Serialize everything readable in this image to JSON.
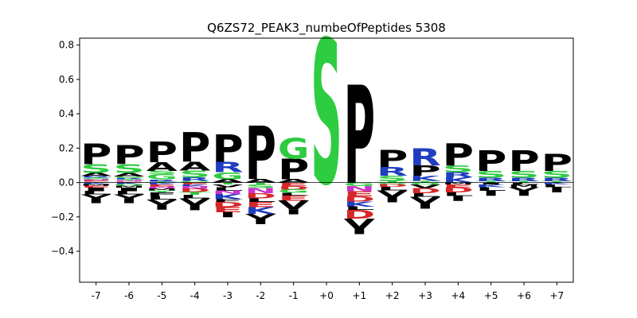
{
  "chart_data": {
    "type": "sequence-logo",
    "title": "Q6ZS72_PEAK3_numbeOfPeptides 5308",
    "xlabel": "",
    "ylabel": "",
    "ylim": [
      -0.58,
      0.84
    ],
    "y_ticks": [
      -0.4,
      -0.2,
      0.0,
      0.2,
      0.4,
      0.6,
      0.8
    ],
    "y_tick_labels": [
      "−0.4",
      "−0.2",
      "0.0",
      "0.2",
      "0.4",
      "0.6",
      "0.8"
    ],
    "positions": [
      "-7",
      "-6",
      "-5",
      "-4",
      "-3",
      "-2",
      "-1",
      "+0",
      "+1",
      "+2",
      "+3",
      "+4",
      "+5",
      "+6",
      "+7"
    ],
    "colors": {
      "P": "#000000",
      "A": "#000000",
      "V": "#000000",
      "L": "#000000",
      "I": "#000000",
      "F": "#000000",
      "W": "#000000",
      "M": "#000000",
      "S": "#2ecc40",
      "G": "#2ecc40",
      "T": "#2ecc40",
      "C": "#2ecc40",
      "Y": "#2ecc40",
      "Q": "#2ecc40",
      "N": "#cc33cc",
      "R": "#1f3ebf",
      "K": "#1f3ebf",
      "H": "#1f3ebf",
      "D": "#d62728",
      "E": "#d62728",
      "gap": "#000000"
    },
    "columns": [
      {
        "pos": "-7",
        "pos_stack": [
          [
            "Q",
            0.004
          ],
          [
            "D",
            0.004
          ],
          [
            "E",
            0.005
          ],
          [
            "N",
            0.005
          ],
          [
            "G",
            0.005
          ],
          [
            "T",
            0.006
          ],
          [
            "R",
            0.008
          ],
          [
            "A",
            0.02
          ],
          [
            "S",
            0.05
          ],
          [
            "P",
            0.12
          ]
        ],
        "neg_stack": [
          [
            "K",
            0.008
          ],
          [
            "M",
            0.01
          ],
          [
            "E",
            0.012
          ],
          [
            "I",
            0.02
          ],
          [
            "L",
            0.02
          ],
          [
            "V",
            0.02
          ],
          [
            "gap",
            0.03
          ]
        ]
      },
      {
        "pos": "-6",
        "pos_stack": [
          [
            "E",
            0.004
          ],
          [
            "D",
            0.004
          ],
          [
            "N",
            0.005
          ],
          [
            "T",
            0.005
          ],
          [
            "R",
            0.008
          ],
          [
            "G",
            0.01
          ],
          [
            "A",
            0.02
          ],
          [
            "S",
            0.05
          ],
          [
            "P",
            0.11
          ]
        ],
        "neg_stack": [
          [
            "K",
            0.008
          ],
          [
            "Q",
            0.01
          ],
          [
            "M",
            0.012
          ],
          [
            "I",
            0.02
          ],
          [
            "L",
            0.02
          ],
          [
            "V",
            0.02
          ],
          [
            "gap",
            0.03
          ]
        ]
      },
      {
        "pos": "-5",
        "pos_stack": [
          [
            "T",
            0.006
          ],
          [
            "R",
            0.012
          ],
          [
            "G",
            0.03
          ],
          [
            "S",
            0.02
          ],
          [
            "A",
            0.05
          ],
          [
            "P",
            0.12
          ]
        ],
        "neg_stack": [
          [
            "K",
            0.01
          ],
          [
            "E",
            0.012
          ],
          [
            "N",
            0.012
          ],
          [
            "M",
            0.012
          ],
          [
            "Y",
            0.012
          ],
          [
            "F",
            0.02
          ],
          [
            "L",
            0.02
          ],
          [
            "V",
            0.03
          ],
          [
            "gap",
            0.03
          ]
        ]
      },
      {
        "pos": "-4",
        "pos_stack": [
          [
            "G",
            0.01
          ],
          [
            "R",
            0.02
          ],
          [
            "S",
            0.04
          ],
          [
            "A",
            0.05
          ],
          [
            "P",
            0.17
          ]
        ],
        "neg_stack": [
          [
            "E",
            0.01
          ],
          [
            "K",
            0.012
          ],
          [
            "N",
            0.014
          ],
          [
            "D",
            0.02
          ],
          [
            "T",
            0.015
          ],
          [
            "L",
            0.02
          ],
          [
            "V",
            0.04
          ],
          [
            "gap",
            0.03
          ]
        ]
      },
      {
        "pos": "-3",
        "pos_stack": [
          [
            "A",
            0.02
          ],
          [
            "G",
            0.04
          ],
          [
            "R",
            0.06
          ],
          [
            "P",
            0.16
          ]
        ],
        "neg_stack": [
          [
            "T",
            0.012
          ],
          [
            "V",
            0.015
          ],
          [
            "L",
            0.02
          ],
          [
            "N",
            0.02
          ],
          [
            "K",
            0.03
          ],
          [
            "F",
            0.015
          ],
          [
            "D",
            0.03
          ],
          [
            "E",
            0.03
          ],
          [
            "gap",
            0.03
          ]
        ]
      },
      {
        "pos": "-2",
        "pos_stack": [
          [
            "A",
            0.02
          ],
          [
            "P",
            0.31
          ]
        ],
        "neg_stack": [
          [
            "T",
            0.012
          ],
          [
            "S",
            0.02
          ],
          [
            "N",
            0.03
          ],
          [
            "D",
            0.03
          ],
          [
            "L",
            0.02
          ],
          [
            "E",
            0.03
          ],
          [
            "K",
            0.04
          ],
          [
            "V",
            0.03
          ],
          [
            "gap",
            0.03
          ]
        ]
      },
      {
        "pos": "-1",
        "pos_stack": [
          [
            "A",
            0.02
          ],
          [
            "P",
            0.12
          ],
          [
            "G",
            0.12
          ]
        ],
        "neg_stack": [
          [
            "E",
            0.02
          ],
          [
            "D",
            0.02
          ],
          [
            "G",
            0.02
          ],
          [
            "L",
            0.015
          ],
          [
            "E",
            0.03
          ],
          [
            "V",
            0.05
          ],
          [
            "gap",
            0.03
          ]
        ]
      },
      {
        "pos": "+0",
        "pos_stack": [
          [
            "S",
            0.84
          ]
        ],
        "neg_stack": []
      },
      {
        "pos": "+1",
        "pos_stack": [
          [
            "P",
            0.57
          ]
        ],
        "neg_stack": [
          [
            "G",
            0.02
          ],
          [
            "N",
            0.03
          ],
          [
            "E",
            0.03
          ],
          [
            "D",
            0.03
          ],
          [
            "K",
            0.03
          ],
          [
            "L",
            0.02
          ],
          [
            "D",
            0.05
          ],
          [
            "V",
            0.06
          ],
          [
            "gap",
            0.03
          ]
        ]
      },
      {
        "pos": "+2",
        "pos_stack": [
          [
            "T",
            0.01
          ],
          [
            "S",
            0.03
          ],
          [
            "R",
            0.05
          ],
          [
            "P",
            0.1
          ]
        ],
        "neg_stack": [
          [
            "Q",
            0.01
          ],
          [
            "D",
            0.015
          ],
          [
            "L",
            0.02
          ],
          [
            "V",
            0.04
          ],
          [
            "gap",
            0.03
          ]
        ]
      },
      {
        "pos": "+3",
        "pos_stack": [
          [
            "T",
            0.01
          ],
          [
            "K",
            0.03
          ],
          [
            "P",
            0.06
          ],
          [
            "R",
            0.1
          ]
        ],
        "neg_stack": [
          [
            "Q",
            0.012
          ],
          [
            "V",
            0.02
          ],
          [
            "D",
            0.03
          ],
          [
            "L",
            0.02
          ],
          [
            "V",
            0.04
          ],
          [
            "gap",
            0.03
          ]
        ]
      },
      {
        "pos": "+4",
        "pos_stack": [
          [
            "K",
            0.03
          ],
          [
            "R",
            0.03
          ],
          [
            "S",
            0.04
          ],
          [
            "P",
            0.13
          ]
        ],
        "neg_stack": [
          [
            "M",
            0.012
          ],
          [
            "E",
            0.015
          ],
          [
            "D",
            0.03
          ],
          [
            "L",
            0.02
          ],
          [
            "gap",
            0.03
          ]
        ]
      },
      {
        "pos": "+5",
        "pos_stack": [
          [
            "T",
            0.008
          ],
          [
            "R",
            0.02
          ],
          [
            "S",
            0.04
          ],
          [
            "P",
            0.12
          ]
        ],
        "neg_stack": [
          [
            "I",
            0.012
          ],
          [
            "K",
            0.015
          ],
          [
            "L",
            0.02
          ],
          [
            "gap",
            0.03
          ]
        ]
      },
      {
        "pos": "+6",
        "pos_stack": [
          [
            "T",
            0.008
          ],
          [
            "R",
            0.02
          ],
          [
            "S",
            0.04
          ],
          [
            "P",
            0.12
          ]
        ],
        "neg_stack": [
          [
            "L",
            0.012
          ],
          [
            "M",
            0.015
          ],
          [
            "V",
            0.02
          ],
          [
            "gap",
            0.03
          ]
        ]
      },
      {
        "pos": "+7",
        "pos_stack": [
          [
            "T",
            0.008
          ],
          [
            "R",
            0.02
          ],
          [
            "S",
            0.04
          ],
          [
            "P",
            0.1
          ]
        ],
        "neg_stack": [
          [
            "K",
            0.012
          ],
          [
            "L",
            0.015
          ],
          [
            "gap",
            0.03
          ]
        ]
      }
    ]
  }
}
